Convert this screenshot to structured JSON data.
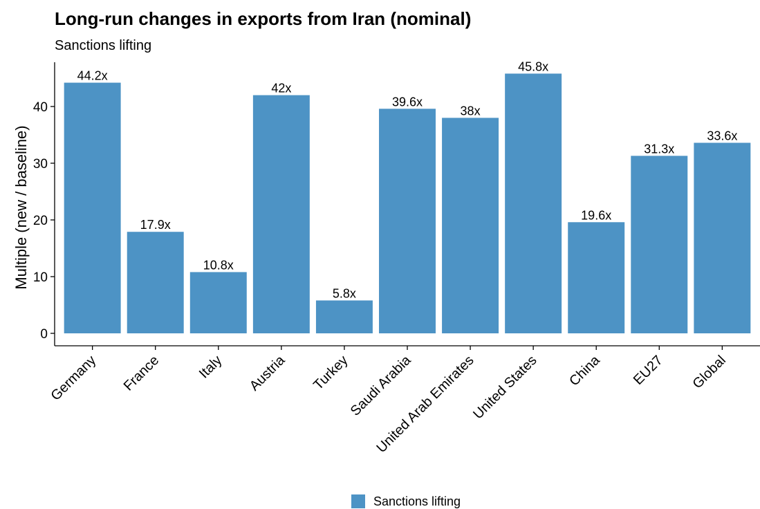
{
  "colors": {
    "bar": "#4d93c5",
    "axis": "#000000"
  },
  "chart_data": {
    "type": "bar",
    "title": "Long-run changes in exports from Iran (nominal)",
    "subtitle": "Sanctions lifting",
    "xlabel": "",
    "ylabel": "Multiple (new / baseline)",
    "ylim": [
      0,
      47.5
    ],
    "yticks": [
      0,
      10,
      20,
      30,
      40
    ],
    "grid": false,
    "legend_position": "bottom",
    "categories": [
      "Germany",
      "France",
      "Italy",
      "Austria",
      "Turkey",
      "Saudi Arabia",
      "United Arab Emirates",
      "United States",
      "China",
      "EU27",
      "Global"
    ],
    "series": [
      {
        "name": "Sanctions lifting",
        "values": [
          44.2,
          17.9,
          10.8,
          42,
          5.8,
          39.6,
          38,
          45.8,
          19.6,
          31.3,
          33.6
        ],
        "labels": [
          "44.2x",
          "17.9x",
          "10.8x",
          "42x",
          "5.8x",
          "39.6x",
          "38x",
          "45.8x",
          "19.6x",
          "31.3x",
          "33.6x"
        ]
      }
    ]
  }
}
